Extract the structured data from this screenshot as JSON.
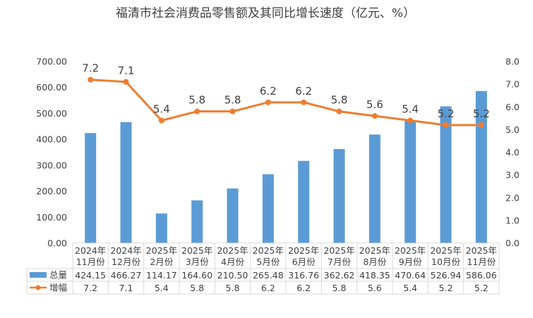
{
  "chart_data": {
    "type": "bar-line-combo",
    "title": "福清市社会消费品零售额及其同比增长速度（亿元、%）",
    "categories": [
      [
        "2024年",
        "11月份"
      ],
      [
        "2024年",
        "12月份"
      ],
      [
        "2025年",
        "2月份"
      ],
      [
        "2025年",
        "3月份"
      ],
      [
        "2025年",
        "4月份"
      ],
      [
        "2025年",
        "5月份"
      ],
      [
        "2025年",
        "6月份"
      ],
      [
        "2025年",
        "7月份"
      ],
      [
        "2025年",
        "8月份"
      ],
      [
        "2025年",
        "9月份"
      ],
      [
        "2025年",
        "10月份"
      ],
      [
        "2025年",
        "11月份"
      ]
    ],
    "series": [
      {
        "name": "总量",
        "type": "bar",
        "axis": "left",
        "values": [
          424.15,
          466.27,
          114.17,
          164.6,
          210.5,
          265.48,
          316.76,
          362.62,
          418.35,
          470.64,
          526.94,
          586.06
        ],
        "labels": [
          "424.15",
          "466.27",
          "114.17",
          "164.60",
          "210.50",
          "265.48",
          "316.76",
          "362.62",
          "418.35",
          "470.64",
          "526.94",
          "586.06"
        ]
      },
      {
        "name": "增幅",
        "type": "line",
        "axis": "right",
        "values": [
          7.2,
          7.1,
          5.4,
          5.8,
          5.8,
          6.2,
          6.2,
          5.8,
          5.6,
          5.4,
          5.2,
          5.2
        ],
        "labels": [
          "7.2",
          "7.1",
          "5.4",
          "5.8",
          "5.8",
          "6.2",
          "6.2",
          "5.8",
          "5.6",
          "5.4",
          "5.2",
          "5.2"
        ]
      }
    ],
    "y_left": {
      "min": 0,
      "max": 700,
      "ticks": [
        "0.00",
        "100.00",
        "200.00",
        "300.00",
        "400.00",
        "500.00",
        "600.00",
        "700.00"
      ]
    },
    "y_right": {
      "min": 0,
      "max": 8,
      "ticks": [
        "0.0",
        "1.0",
        "2.0",
        "3.0",
        "4.0",
        "5.0",
        "6.0",
        "7.0",
        "8.0"
      ]
    },
    "grid": false,
    "data_table": true,
    "colors": {
      "bar": "#5b9bd5",
      "line": "#ed7d31",
      "axis": "#d9d9d9",
      "text": "#404040"
    }
  }
}
